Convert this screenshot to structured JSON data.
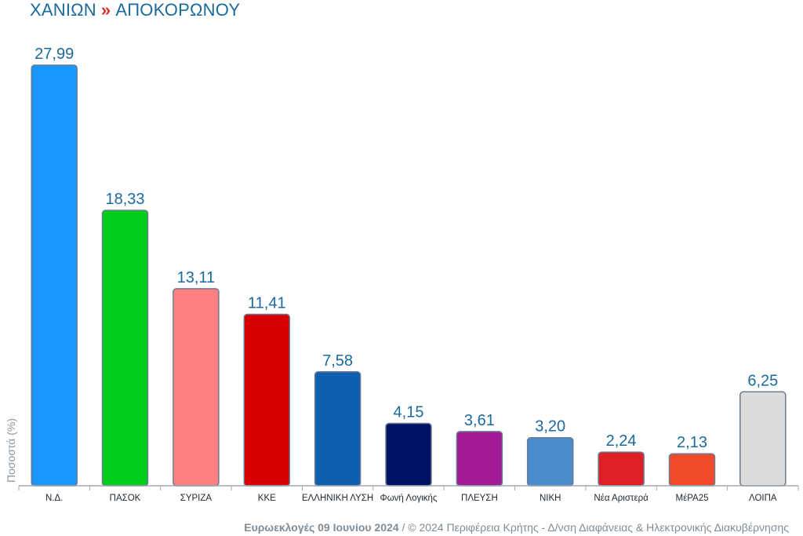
{
  "header": {
    "region": "ΧΑΝΙΩΝ",
    "separator": "»",
    "municipality": "ΑΠΟΚΟΡΩΝΟΥ"
  },
  "footer": {
    "election": "Ευρωεκλογές 09 Ιουνίου 2024",
    "credit": " / © 2024 Περιφέρεια Κρήτης - Δ/νση Διαφάνειας & Ηλεκτρονικής Διακυβέρνησης"
  },
  "chart_data": {
    "type": "bar",
    "title": "ΧΑΝΙΩΝ » ΑΠΟΚΟΡΩΝΟΥ",
    "xlabel": "",
    "ylabel": "Ποσοστά (%)",
    "ylim": [
      0,
      28
    ],
    "grid": false,
    "legend": "none",
    "categories": [
      "Ν.Δ.",
      "ΠΑΣΟΚ",
      "ΣΥΡΙΖΑ",
      "ΚΚΕ",
      "ΕΛΛΗΝΙΚΗ ΛΥΣΗ",
      "Φωνή Λογικής",
      "ΠΛΕΥΣΗ",
      "ΝΙΚΗ",
      "Νέα Αριστερά",
      "ΜέΡΑ25",
      "ΛΟΙΠΑ"
    ],
    "values": [
      27.99,
      18.33,
      13.11,
      11.41,
      7.58,
      4.15,
      3.61,
      3.2,
      2.24,
      2.13,
      6.25
    ],
    "value_labels": [
      "27,99",
      "18,33",
      "13,11",
      "11,41",
      "7,58",
      "4,15",
      "3,61",
      "3,20",
      "2,24",
      "2,13",
      "6,25"
    ],
    "colors": [
      "#1a97ff",
      "#00cc1a",
      "#ff8080",
      "#d90000",
      "#0d5fb0",
      "#001166",
      "#a31a96",
      "#4a8ccc",
      "#dd1f26",
      "#f0492a",
      "#dcdcdc"
    ],
    "bar_edge_color": "#6b7a90",
    "value_label_color": "#1b6a9e",
    "axis_color": "#a0aab4"
  }
}
